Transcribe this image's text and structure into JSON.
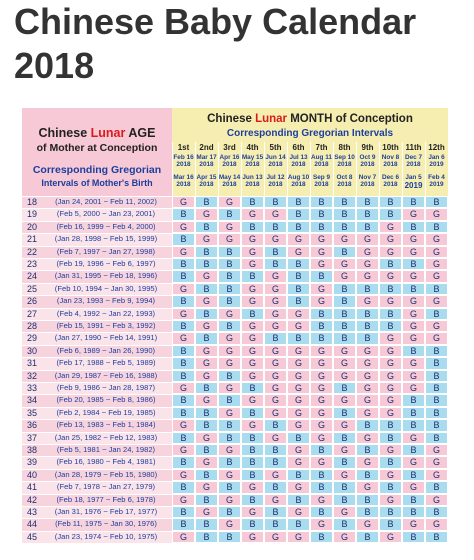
{
  "header": {
    "title_line1": "Chinese Baby Calendar",
    "title_line2": "2018"
  },
  "table": {
    "age_header": {
      "pre": "Chinese ",
      "lunar": "Lunar",
      "post": " AGE",
      "line2": "of Mother at Conception"
    },
    "birth_header": {
      "line1": "Corresponding Gregorian",
      "line2": "Intervals of Mother's Birth"
    },
    "month_header": {
      "pre": "Chinese ",
      "lunar": "Lunar",
      "post": " MONTH of Conception",
      "line2": "Corresponding Gregorian Intervals"
    },
    "colors": {
      "B": "#a9dcef",
      "G": "#f7c8d6"
    },
    "months": [
      {
        "label": "1st",
        "start": "Feb 16",
        "start_year": "2018",
        "end": "Mar 16",
        "end_year": "2018"
      },
      {
        "label": "2nd",
        "start": "Mar 17",
        "start_year": "2018",
        "end": "Apr 15",
        "end_year": "2018"
      },
      {
        "label": "3rd",
        "start": "Apr 16",
        "start_year": "2018",
        "end": "May 14",
        "end_year": "2018"
      },
      {
        "label": "4th",
        "start": "May 15",
        "start_year": "2018",
        "end": "Jun 13",
        "end_year": "2018"
      },
      {
        "label": "5th",
        "start": "Jun 14",
        "start_year": "2018",
        "end": "Jul 12",
        "end_year": "2018"
      },
      {
        "label": "6th",
        "start": "Jul 13",
        "start_year": "2018",
        "end": "Aug 10",
        "end_year": "2018"
      },
      {
        "label": "7th",
        "start": "Aug 11",
        "start_year": "2018",
        "end": "Sep 9",
        "end_year": "2018"
      },
      {
        "label": "8th",
        "start": "Sep 10",
        "start_year": "2018",
        "end": "Oct 8",
        "end_year": "2018"
      },
      {
        "label": "9th",
        "start": "Oct 9",
        "start_year": "2018",
        "end": "Nov 7",
        "end_year": "2018"
      },
      {
        "label": "10th",
        "start": "Nov 8",
        "start_year": "2018",
        "end": "Dec 6",
        "end_year": "2018"
      },
      {
        "label": "11th",
        "start": "Dec 7",
        "start_year": "2018",
        "end": "Jan 5",
        "end_year": "2019"
      },
      {
        "label": "12th",
        "start": "Jan 6",
        "start_year": "2019",
        "end": "Feb 4",
        "end_year": "2019"
      }
    ],
    "rows": [
      {
        "age": "18",
        "interval": "(Jan 24, 2001 ~ Feb 11, 2002)",
        "cells": [
          "G",
          "B",
          "G",
          "B",
          "B",
          "B",
          "B",
          "B",
          "B",
          "B",
          "B",
          "B"
        ]
      },
      {
        "age": "19",
        "interval": "(Feb 5, 2000 ~ Jan 23, 2001)",
        "cells": [
          "B",
          "G",
          "B",
          "G",
          "G",
          "B",
          "B",
          "B",
          "B",
          "B",
          "G",
          "G"
        ]
      },
      {
        "age": "20",
        "interval": "(Feb 16, 1999 ~ Feb 4, 2000)",
        "cells": [
          "G",
          "B",
          "G",
          "B",
          "B",
          "B",
          "B",
          "B",
          "B",
          "G",
          "B",
          "B"
        ]
      },
      {
        "age": "21",
        "interval": "(Jan 28, 1998 ~ Feb 15, 1999)",
        "cells": [
          "B",
          "G",
          "G",
          "G",
          "G",
          "G",
          "G",
          "G",
          "G",
          "G",
          "G",
          "G"
        ]
      },
      {
        "age": "22",
        "interval": "(Feb 7, 1997 ~ Jan 27, 1998)",
        "cells": [
          "G",
          "B",
          "B",
          "G",
          "B",
          "G",
          "G",
          "B",
          "G",
          "G",
          "G",
          "G"
        ]
      },
      {
        "age": "23",
        "interval": "(Feb 19, 1996 ~ Feb 6, 1997)",
        "cells": [
          "B",
          "B",
          "B",
          "G",
          "B",
          "B",
          "G",
          "G",
          "G",
          "B",
          "B",
          "G"
        ]
      },
      {
        "age": "24",
        "interval": "(Jan 31, 1995 ~ Feb 18, 1996)",
        "cells": [
          "B",
          "G",
          "B",
          "B",
          "G",
          "B",
          "B",
          "G",
          "G",
          "G",
          "G",
          "G"
        ]
      },
      {
        "age": "25",
        "interval": "(Feb 10, 1994 ~ Jan 30, 1995)",
        "cells": [
          "G",
          "B",
          "B",
          "G",
          "G",
          "B",
          "G",
          "B",
          "B",
          "B",
          "B",
          "B"
        ]
      },
      {
        "age": "26",
        "interval": "(Jan 23, 1993 ~ Feb 9, 1994)",
        "cells": [
          "B",
          "G",
          "B",
          "G",
          "G",
          "B",
          "G",
          "B",
          "G",
          "G",
          "G",
          "G"
        ]
      },
      {
        "age": "27",
        "interval": "(Feb 4, 1992 ~ Jan 22, 1993)",
        "cells": [
          "G",
          "B",
          "G",
          "B",
          "G",
          "G",
          "B",
          "B",
          "B",
          "B",
          "G",
          "B"
        ]
      },
      {
        "age": "28",
        "interval": "(Feb 15, 1991 ~ Feb 3, 1992)",
        "cells": [
          "B",
          "G",
          "B",
          "G",
          "G",
          "G",
          "B",
          "B",
          "B",
          "B",
          "G",
          "G"
        ]
      },
      {
        "age": "29",
        "interval": "(Jan 27, 1990 ~ Feb 14, 1991)",
        "cells": [
          "G",
          "B",
          "G",
          "G",
          "B",
          "B",
          "B",
          "B",
          "B",
          "G",
          "G",
          "G"
        ]
      },
      {
        "age": "30",
        "interval": "(Feb 6, 1989 ~ Jan 26, 1990)",
        "cells": [
          "B",
          "G",
          "G",
          "G",
          "G",
          "G",
          "G",
          "G",
          "G",
          "G",
          "B",
          "B"
        ]
      },
      {
        "age": "31",
        "interval": "(Feb 17, 1988 ~ Feb 5, 1989)",
        "cells": [
          "B",
          "G",
          "G",
          "G",
          "G",
          "G",
          "G",
          "G",
          "G",
          "G",
          "G",
          "B"
        ]
      },
      {
        "age": "32",
        "interval": "(Jan 29, 1987 ~ Feb 16, 1988)",
        "cells": [
          "B",
          "G",
          "B",
          "G",
          "G",
          "G",
          "G",
          "G",
          "G",
          "G",
          "G",
          "B"
        ]
      },
      {
        "age": "33",
        "interval": "(Feb 9, 1986 ~ Jan 28, 1987)",
        "cells": [
          "G",
          "B",
          "G",
          "B",
          "G",
          "G",
          "G",
          "B",
          "G",
          "G",
          "G",
          "B"
        ]
      },
      {
        "age": "34",
        "interval": "(Feb 20, 1985 ~ Feb 8, 1986)",
        "cells": [
          "B",
          "G",
          "B",
          "G",
          "G",
          "G",
          "G",
          "G",
          "G",
          "G",
          "B",
          "B"
        ]
      },
      {
        "age": "35",
        "interval": "(Feb 2, 1984 ~ Feb 19, 1985)",
        "cells": [
          "B",
          "B",
          "G",
          "B",
          "G",
          "G",
          "G",
          "B",
          "G",
          "G",
          "B",
          "B"
        ]
      },
      {
        "age": "36",
        "interval": "(Feb 13, 1983 ~ Feb 1, 1984)",
        "cells": [
          "G",
          "B",
          "B",
          "G",
          "B",
          "G",
          "G",
          "G",
          "B",
          "B",
          "B",
          "B"
        ]
      },
      {
        "age": "37",
        "interval": "(Jan 25, 1982 ~ Feb 12, 1983)",
        "cells": [
          "B",
          "G",
          "B",
          "B",
          "G",
          "B",
          "G",
          "B",
          "G",
          "B",
          "G",
          "B"
        ]
      },
      {
        "age": "38",
        "interval": "(Feb 5, 1981 ~ Jan 24, 1982)",
        "cells": [
          "G",
          "B",
          "G",
          "B",
          "B",
          "G",
          "B",
          "G",
          "B",
          "G",
          "B",
          "G"
        ]
      },
      {
        "age": "39",
        "interval": "(Feb 16, 1980 ~ Feb 4, 1981)",
        "cells": [
          "B",
          "G",
          "B",
          "B",
          "B",
          "G",
          "G",
          "B",
          "G",
          "B",
          "G",
          "G"
        ]
      },
      {
        "age": "40",
        "interval": "(Jan 28, 1979 ~ Feb 15, 1980)",
        "cells": [
          "G",
          "B",
          "G",
          "B",
          "G",
          "B",
          "B",
          "G",
          "B",
          "G",
          "B",
          "G"
        ]
      },
      {
        "age": "41",
        "interval": "(Feb 7, 1978 ~ Jan 27, 1979)",
        "cells": [
          "B",
          "G",
          "B",
          "G",
          "B",
          "G",
          "B",
          "B",
          "G",
          "B",
          "G",
          "B"
        ]
      },
      {
        "age": "42",
        "interval": "(Feb 18, 1977 ~ Feb 6, 1978)",
        "cells": [
          "G",
          "B",
          "G",
          "B",
          "G",
          "B",
          "G",
          "B",
          "B",
          "G",
          "B",
          "G"
        ]
      },
      {
        "age": "43",
        "interval": "(Jan 31, 1976 ~ Feb 17, 1977)",
        "cells": [
          "B",
          "G",
          "B",
          "G",
          "B",
          "G",
          "B",
          "G",
          "B",
          "B",
          "B",
          "B"
        ]
      },
      {
        "age": "44",
        "interval": "(Feb 11, 1975 ~ Jan 30, 1976)",
        "cells": [
          "B",
          "B",
          "G",
          "B",
          "B",
          "B",
          "G",
          "B",
          "G",
          "B",
          "G",
          "G"
        ]
      },
      {
        "age": "45",
        "interval": "(Jan 23, 1974 ~ Feb 10, 1975)",
        "cells": [
          "G",
          "B",
          "B",
          "G",
          "G",
          "G",
          "B",
          "G",
          "B",
          "G",
          "B",
          "B"
        ]
      }
    ]
  }
}
